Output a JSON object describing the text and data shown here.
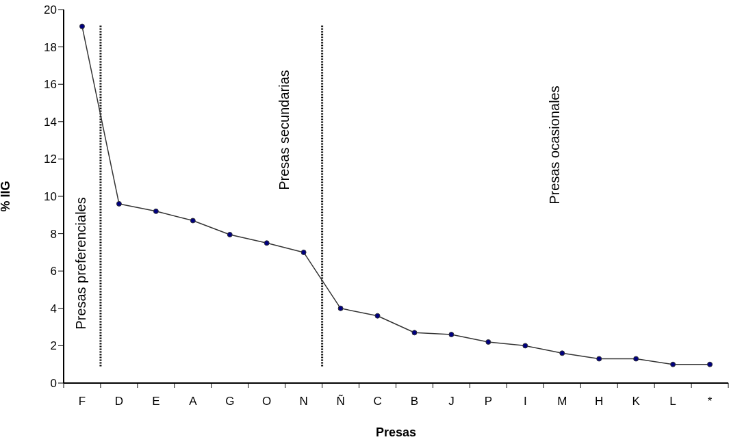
{
  "chart_data": {
    "type": "line",
    "xlabel": "Presas",
    "ylabel": "% IIG",
    "categories": [
      "F",
      "D",
      "E",
      "A",
      "G",
      "O",
      "N",
      "Ñ",
      "C",
      "B",
      "J",
      "P",
      "I",
      "M",
      "H",
      "K",
      "L",
      "*"
    ],
    "series": [
      {
        "color": "#333333",
        "values": [
          19.1,
          9.6,
          9.2,
          8.7,
          7.95,
          7.5,
          7.0,
          4.0,
          3.6,
          2.7,
          2.6,
          2.2,
          2.0,
          1.6,
          1.3,
          1.3,
          1.0,
          1.0
        ]
      }
    ],
    "ylim": [
      0,
      20
    ],
    "yticks": [
      0,
      2,
      4,
      6,
      8,
      10,
      12,
      14,
      16,
      18,
      20
    ],
    "marker": "circle",
    "line_style": "solid",
    "annotations": [
      "Presas preferenciales",
      "Presas secundarias",
      "Presas ocasionales"
    ]
  }
}
